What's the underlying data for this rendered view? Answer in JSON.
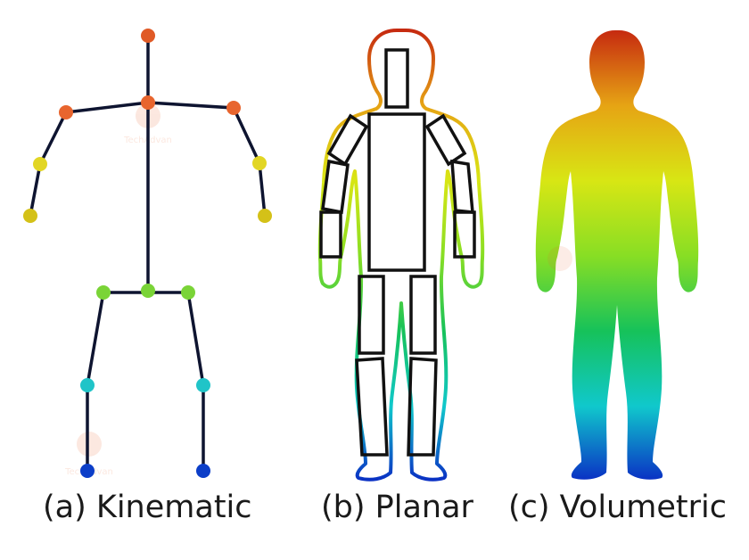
{
  "captions": {
    "kinematic": "(a) Kinematic",
    "planar": "(b) Planar",
    "volumetric": "(c) Volumetric"
  },
  "watermark": "TechAdvan",
  "colors": {
    "head": "#c23b12",
    "shoulder": "#e8652e",
    "elbow": "#e2d624",
    "wrist": "#d4c118",
    "hip": "#7ad437",
    "knee": "#20c4c8",
    "ankle": "#0c3ec8",
    "bone": "#0e1430",
    "outline": "#111111"
  },
  "gradient": [
    "#c62a10",
    "#e6a414",
    "#d8e614",
    "#88de24",
    "#16c25a",
    "#10c8cc",
    "#0a2ec4"
  ]
}
